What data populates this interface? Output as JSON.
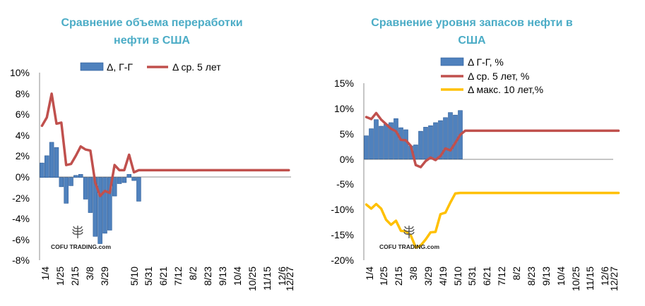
{
  "colors": {
    "bar": "#4f81bd",
    "bar_edge": "#2a5a96",
    "line_avg": "#c0504d",
    "line_max": "#ffc000",
    "title": "#4bacc6"
  },
  "watermark": "COFU TRADING.com",
  "chart_data": [
    {
      "type": "bar",
      "title_lines": [
        "Сравнение объема переработки",
        "нефти в США"
      ],
      "x_tick_labels": [
        "1/4",
        "1/25",
        "2/15",
        "3/8",
        "3/29",
        "5/10",
        "5/31",
        "6/21",
        "7/12",
        "8/2",
        "8/23",
        "9/13",
        "10/4",
        "10/25",
        "11/15",
        "12/6",
        "12/27"
      ],
      "y_tick_labels": [
        "10%",
        "8%",
        "6%",
        "4%",
        "2%",
        "0%",
        "-2%",
        "-4%",
        "-6%",
        "-8%"
      ],
      "ylim": [
        -8,
        10
      ],
      "y_unit": "%",
      "legend": [
        "Δ, Г-Г",
        "Δ ср. 5 лет"
      ],
      "legend_position": "top",
      "grid": false,
      "series": [
        {
          "name": "Δ, Г-Г",
          "kind": "bar",
          "values": [
            1.4,
            2.1,
            3.4,
            2.9,
            -0.9,
            -2.5,
            -0.8,
            0.2,
            0.3,
            -2.1,
            -3.4,
            -5.7,
            -6.4,
            -5.4,
            -5.1,
            -1.8,
            -0.6,
            -0.5,
            0.3,
            -0.3,
            -2.3
          ]
        },
        {
          "name": "Δ ср. 5 лет",
          "kind": "line",
          "values": [
            5.0,
            5.8,
            8.1,
            5.2,
            5.3,
            1.2,
            1.3,
            2.1,
            3.0,
            2.7,
            2.6,
            -0.5,
            -1.8,
            -1.3,
            -1.5,
            1.2,
            0.7,
            0.7,
            2.2,
            0.5,
            0.7,
            0.7,
            0.7,
            0.7,
            0.7,
            0.7,
            0.7,
            0.7,
            0.7,
            0.7,
            0.7,
            0.7,
            0.7,
            0.7,
            0.7,
            0.7,
            0.7,
            0.7,
            0.7,
            0.7,
            0.7,
            0.7,
            0.7,
            0.7,
            0.7,
            0.7,
            0.7,
            0.7,
            0.7,
            0.7,
            0.7,
            0.7
          ]
        }
      ]
    },
    {
      "type": "bar",
      "title_lines": [
        "Сравнение уровня запасов нефти в",
        "США"
      ],
      "x_tick_labels": [
        "1/4",
        "1/25",
        "2/15",
        "3/8",
        "3/29",
        "4/19",
        "5/10",
        "5/31",
        "6/21",
        "7/12",
        "8/2",
        "8/23",
        "9/13",
        "10/4",
        "10/25",
        "11/15",
        "12/6",
        "12/27"
      ],
      "y_tick_labels": [
        "15%",
        "10%",
        "5%",
        "0%",
        "-5%",
        "-10%",
        "-15%",
        "-20%"
      ],
      "ylim": [
        -20,
        15
      ],
      "y_unit": "%",
      "legend": [
        "Δ Г-Г, %",
        "Δ ср. 5 лет, %",
        "Δ макс. 10 лет,%"
      ],
      "legend_position": "top",
      "grid": false,
      "series": [
        {
          "name": "Δ Г-Г, %",
          "kind": "bar",
          "values": [
            4.6,
            6.0,
            7.8,
            6.5,
            6.9,
            7.2,
            8.0,
            6.2,
            5.8,
            2.6,
            2.8,
            5.5,
            6.3,
            6.6,
            7.2,
            7.6,
            8.2,
            9.2,
            8.7,
            9.6
          ]
        },
        {
          "name": "Δ ср. 5 лет, %",
          "kind": "line",
          "values": [
            8.3,
            7.9,
            9.1,
            7.8,
            6.9,
            6.0,
            5.5,
            3.8,
            3.7,
            2.6,
            -1.2,
            -1.6,
            -0.4,
            0.3,
            -0.2,
            0.6,
            2.1,
            1.7,
            3.2,
            4.8,
            5.6,
            5.6,
            5.6,
            5.6,
            5.6,
            5.6,
            5.6,
            5.6,
            5.6,
            5.6,
            5.6,
            5.6,
            5.6,
            5.6,
            5.6,
            5.6,
            5.6,
            5.6,
            5.6,
            5.6,
            5.6,
            5.6,
            5.6,
            5.6,
            5.6,
            5.6,
            5.6,
            5.6,
            5.6,
            5.6,
            5.6,
            5.6
          ]
        },
        {
          "name": "Δ макс. 10 лет,%",
          "kind": "line",
          "values": [
            -9.0,
            -9.8,
            -8.9,
            -9.8,
            -12.0,
            -13.0,
            -12.2,
            -14.2,
            -14.3,
            -15.1,
            -17.5,
            -17.1,
            -15.9,
            -14.5,
            -14.4,
            -10.9,
            -10.6,
            -8.6,
            -6.8,
            -6.7,
            -6.7,
            -6.7,
            -6.7,
            -6.7,
            -6.7,
            -6.7,
            -6.7,
            -6.7,
            -6.7,
            -6.7,
            -6.7,
            -6.7,
            -6.7,
            -6.7,
            -6.7,
            -6.7,
            -6.7,
            -6.7,
            -6.7,
            -6.7,
            -6.7,
            -6.7,
            -6.7,
            -6.7,
            -6.7,
            -6.7,
            -6.7,
            -6.7,
            -6.7,
            -6.7,
            -6.7,
            -6.7
          ]
        }
      ]
    }
  ]
}
